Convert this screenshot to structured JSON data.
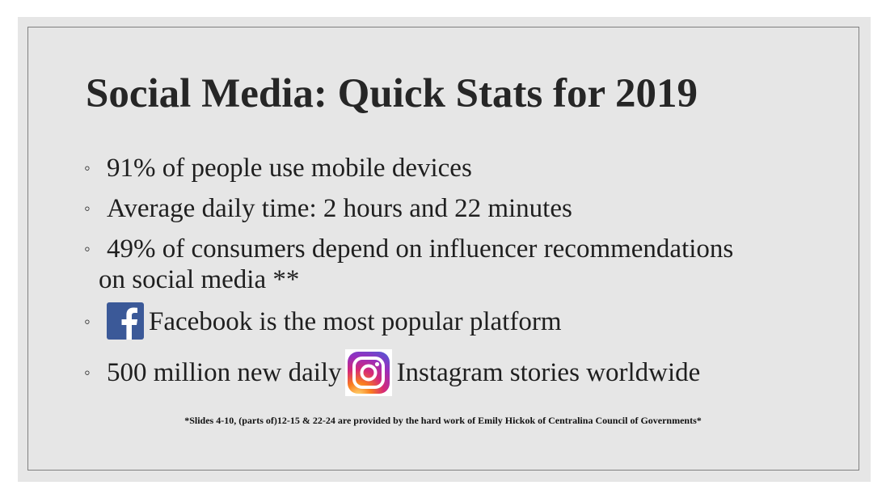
{
  "slide": {
    "title": "Social Media: Quick Stats for 2019",
    "bullets": [
      {
        "marker": "◦",
        "text": "91% of people use mobile devices"
      },
      {
        "marker": "◦",
        "text": "Average daily time: 2 hours and 22 minutes"
      },
      {
        "marker": "◦",
        "text": "49% of consumers depend on influencer recommendations",
        "continuation": "on social media **"
      },
      {
        "marker": "◦",
        "icon": "facebook-logo-icon",
        "text": "Facebook is the most popular platform"
      },
      {
        "marker": "◦",
        "text_before": "500 million new daily",
        "icon": "instagram-logo-icon",
        "text_after": "Instagram stories worldwide"
      }
    ],
    "footnote": "*Slides 4-10, (parts of)12-15 & 22-24 are provided by the hard work of Emily Hickok of Centralina Council of Governments*"
  },
  "colors": {
    "slide_background": "#e6e6e6",
    "frame_border": "#7f7f7f",
    "title_text": "#262626",
    "facebook_blue": "#3b5998",
    "instagram_gradient": [
      "#feda75",
      "#fa7e1e",
      "#d62976",
      "#962fbf",
      "#4f5bd5"
    ]
  }
}
